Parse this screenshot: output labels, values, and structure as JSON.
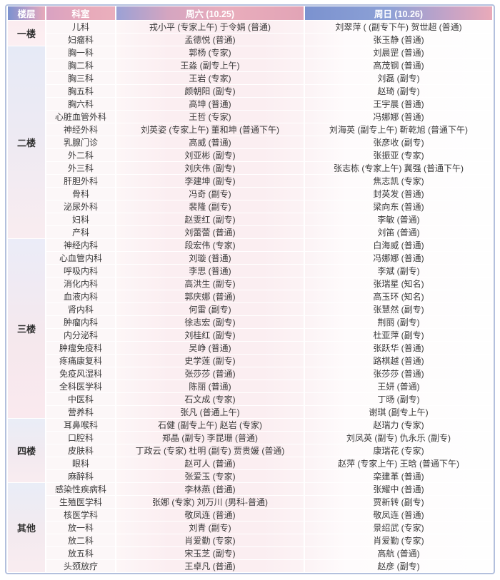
{
  "headers": {
    "floor": "楼层",
    "dept": "科室",
    "saturday": "周六 (10.25)",
    "sunday": "周日 (10.26)"
  },
  "colors": {
    "header_blue": "#7b92cf",
    "header_pink": "#e7aaba",
    "border_outer": "#b3c0dd",
    "row_pink": "#fbeef1",
    "text_dark": "#3b3b3b"
  },
  "floors": [
    {
      "name": "一楼",
      "rows": [
        {
          "dept": "儿科",
          "saturday": "戎小平 (专家上午) 于令娟 (普通)",
          "sunday": "刘翠萍 ( (副专下午) 贺世超 (普通)"
        },
        {
          "dept": "妇瘤科",
          "saturday": "孟德悦 (普通)",
          "sunday": "张玉静 (普通)"
        }
      ]
    },
    {
      "name": "二楼",
      "rows": [
        {
          "dept": "胸一科",
          "saturday": "郭杨 (专家)",
          "sunday": "刘晨罡 (普通)"
        },
        {
          "dept": "胸二科",
          "saturday": "王淼 (副专上午)",
          "sunday": "高茂钢 (普通)"
        },
        {
          "dept": "胸三科",
          "saturday": "王岩 (专家)",
          "sunday": "刘磊 (副专)"
        },
        {
          "dept": "胸五科",
          "saturday": "颜朝阳 (副专)",
          "sunday": "赵琦 (副专)"
        },
        {
          "dept": "胸六科",
          "saturday": "高坤 (普通)",
          "sunday": "王宇晨 (普通)"
        },
        {
          "dept": "心脏血管外科",
          "saturday": "王哲 (专家)",
          "sunday": "冯娜娜 (普通)"
        },
        {
          "dept": "神经外科",
          "saturday": "刘英姿 (专家上午) 董和坤 (普通下午)",
          "sunday": "刘海英 (副专上午) 靳乾旭 (普通下午)"
        },
        {
          "dept": "乳腺门诊",
          "saturday": "高威 (普通)",
          "sunday": "张彦收 (副专)"
        },
        {
          "dept": "外二科",
          "saturday": "刘亚彬 (副专)",
          "sunday": "张振亚 (专家)"
        },
        {
          "dept": "外三科",
          "saturday": "刘庆伟 (副专)",
          "sunday": "张志栋 (专家上午) 冀强 (普通下午)"
        },
        {
          "dept": "肝胆外科",
          "saturday": "李建坤 (副专)",
          "sunday": "焦志凯 (专家)"
        },
        {
          "dept": "骨科",
          "saturday": "冯奇 (副专)",
          "sunday": "封英发 (普通)"
        },
        {
          "dept": "泌尿外科",
          "saturday": "裴隆 (副专)",
          "sunday": "梁向东 (普通)"
        },
        {
          "dept": "妇科",
          "saturday": "赵雯红 (副专)",
          "sunday": "李敏 (普通)"
        },
        {
          "dept": "产科",
          "saturday": "刘蕾蕾 (普通)",
          "sunday": "刘笛 (普通)"
        }
      ]
    },
    {
      "name": "三楼",
      "rows": [
        {
          "dept": "神经内科",
          "saturday": "段宏伟 (专家)",
          "sunday": "白海威 (普通)"
        },
        {
          "dept": "心血管内科",
          "saturday": "刘璇 (普通)",
          "sunday": "冯娜娜 (普通)"
        },
        {
          "dept": "呼吸内科",
          "saturday": "李思 (普通)",
          "sunday": "李斌 (副专)"
        },
        {
          "dept": "消化内科",
          "saturday": "高洪生 (副专)",
          "sunday": "张瑞星 (知名)"
        },
        {
          "dept": "血液内科",
          "saturday": "郭庆娜 (普通)",
          "sunday": "高玉环 (知名)"
        },
        {
          "dept": "肾内科",
          "saturday": "何雷 (副专)",
          "sunday": "张慧然 (副专)"
        },
        {
          "dept": "肿瘤内科",
          "saturday": "徐志宏 (副专)",
          "sunday": "荆丽 (副专)"
        },
        {
          "dept": "内分泌科",
          "saturday": "刘桂红 (副专)",
          "sunday": "杜亚萍 (副专)"
        },
        {
          "dept": "肿瘤免疫科",
          "saturday": "吴峥 (普通)",
          "sunday": "张跃华 (普通)"
        },
        {
          "dept": "疼痛康复科",
          "saturday": "史学莲 (副专)",
          "sunday": "路棋越 (普通)"
        },
        {
          "dept": "免疫风湿科",
          "saturday": "张莎莎 (普通)",
          "sunday": "张莎莎 (普通)"
        },
        {
          "dept": "全科医学科",
          "saturday": "陈丽 (普通)",
          "sunday": "王妍 (普通)"
        },
        {
          "dept": "中医科",
          "saturday": "石文成 (专家)",
          "sunday": "丁旸 (副专)"
        },
        {
          "dept": "营养科",
          "saturday": "张凡 (普通上午)",
          "sunday": "谢琪 (副专上午)"
        }
      ]
    },
    {
      "name": "四楼",
      "rows": [
        {
          "dept": "耳鼻喉科",
          "saturday": "石健 (副专上午) 赵岩 (专家)",
          "sunday": "赵瑞力 (专家)"
        },
        {
          "dept": "口腔科",
          "saturday": "郑晶 (副专) 李昆珊 (普通)",
          "sunday": "刘凤英 (副专) 仇永乐 (副专)"
        },
        {
          "dept": "皮肤科",
          "saturday": "丁政云 (专家) 杜明 (副专) 贾贵媛 (普通)",
          "sunday": "康瑞花 (专家)"
        },
        {
          "dept": "眼科",
          "saturday": "赵可人 (普通)",
          "sunday": "赵萍 (专家上午) 王晗 (普通下午)"
        },
        {
          "dept": "麻醉科",
          "saturday": "张爱玉 (专家)",
          "sunday": "栾建革 (普通)"
        }
      ]
    },
    {
      "name": "其他",
      "rows": [
        {
          "dept": "感染性疾病科",
          "saturday": "李林燕 (普通)",
          "sunday": "张耀中 (普通)"
        },
        {
          "dept": "生殖医学科",
          "saturday": "张娜 (专家) 刘万川 (男科-普通)",
          "sunday": "贾新转 (副专)"
        },
        {
          "dept": "核医学科",
          "saturday": "敬凤连 (普通)",
          "sunday": "敬凤连 (普通)"
        },
        {
          "dept": "放一科",
          "saturday": "刘青 (副专)",
          "sunday": "景绍武 (专家)"
        },
        {
          "dept": "放二科",
          "saturday": "肖爱勤 (专家)",
          "sunday": "肖爱勤 (专家)"
        },
        {
          "dept": "放五科",
          "saturday": "宋玉芝 (副专)",
          "sunday": "高航 (普通)"
        },
        {
          "dept": "头颈放疗",
          "saturday": "王卓凡 (普通)",
          "sunday": "赵彦 (副专)"
        }
      ]
    }
  ]
}
